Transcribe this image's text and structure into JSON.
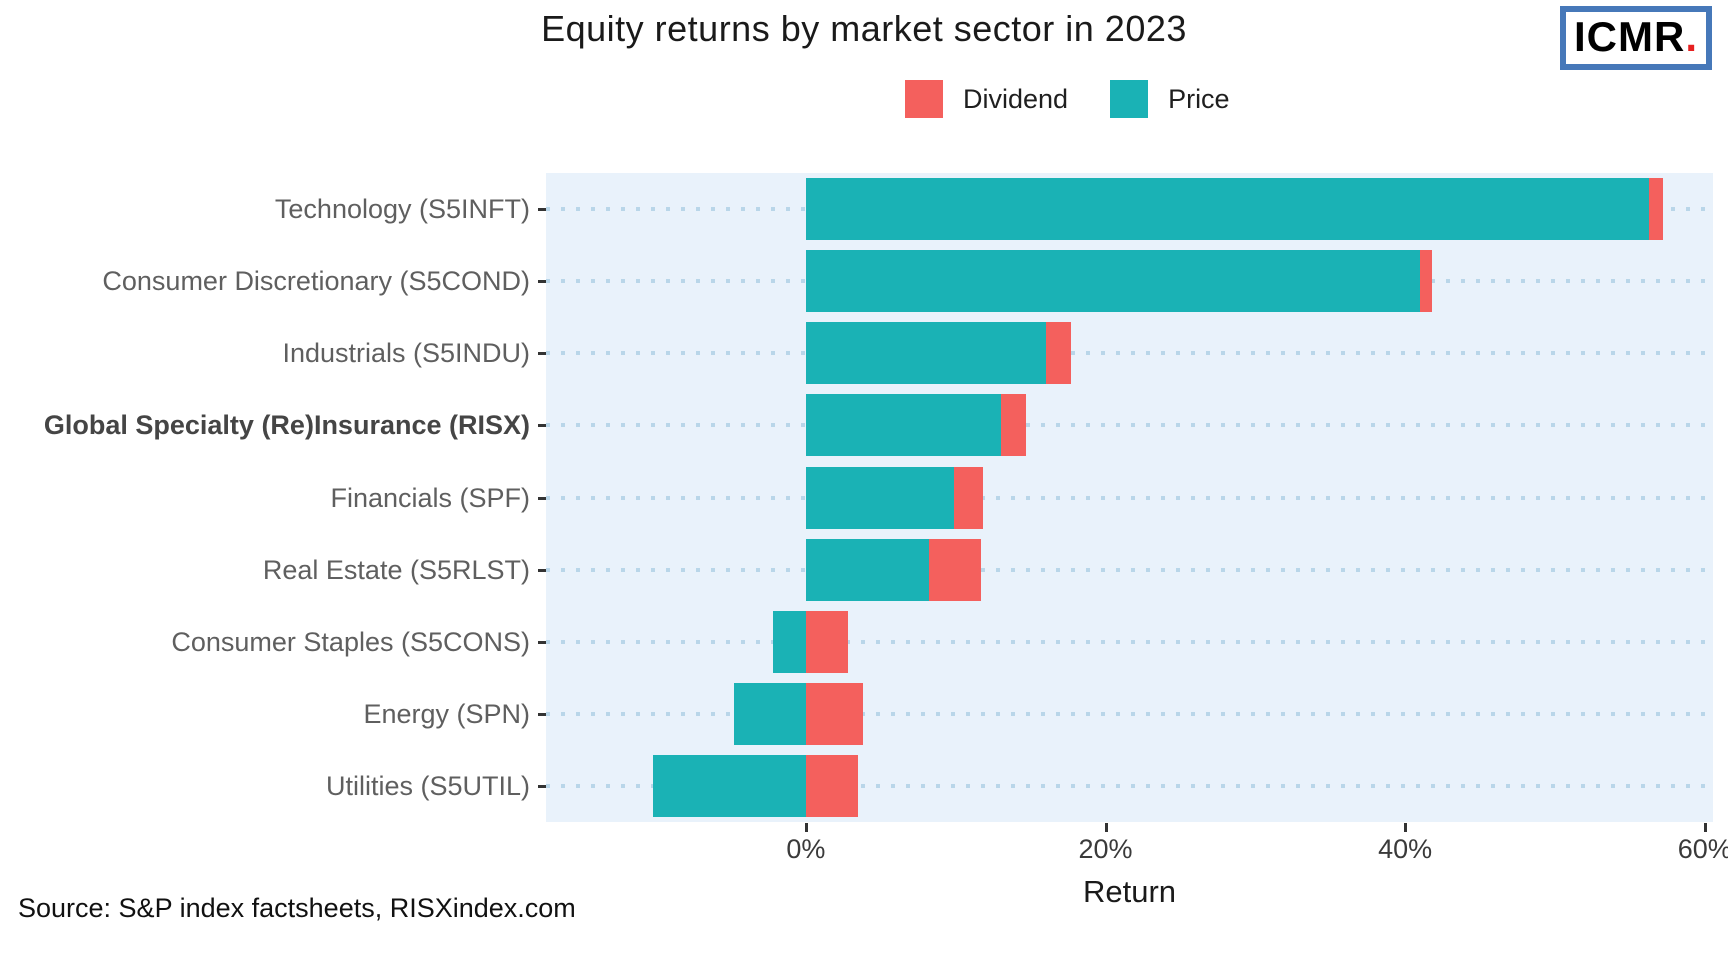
{
  "title": "Equity returns by market sector in 2023",
  "logo": {
    "text": "ICMR",
    "dot": "."
  },
  "legend": [
    {
      "label": "Dividend",
      "color": "#f4605d"
    },
    {
      "label": "Price",
      "color": "#1ab2b5"
    }
  ],
  "source": "Source: S&P index factsheets, RISXindex.com",
  "colors": {
    "price": "#1ab2b5",
    "dividend": "#f4605d",
    "panel_background": "#e9f2fb",
    "gridline": "#b9d6e9",
    "logo_border": "#4678b9",
    "logo_dot": "#e62020"
  },
  "chart_data": {
    "type": "bar",
    "orientation": "horizontal",
    "stacked": true,
    "title": "Equity returns by market sector in 2023",
    "xlabel": "Return",
    "ylabel": "",
    "categories": [
      "Technology (S5INFT)",
      "Consumer Discretionary (S5COND)",
      "Industrials (S5INDU)",
      "Global Specialty (Re)Insurance (RISX)",
      "Financials (SPF)",
      "Real Estate (S5RLST)",
      "Consumer Staples (S5CONS)",
      "Energy (SPN)",
      "Utilities (S5UTIL)"
    ],
    "highlight_category": "Global Specialty (Re)Insurance (RISX)",
    "series": [
      {
        "name": "Price",
        "color": "#1ab2b5",
        "values": [
          56.3,
          41.0,
          16.0,
          13.0,
          9.9,
          8.2,
          -2.2,
          -4.8,
          -10.2
        ]
      },
      {
        "name": "Dividend",
        "color": "#f4605d",
        "values": [
          0.9,
          0.8,
          1.7,
          1.7,
          1.9,
          3.5,
          2.8,
          3.8,
          3.5
        ]
      }
    ],
    "x_ticks": [
      "0%",
      "20%",
      "40%",
      "60%"
    ],
    "x_tick_values": [
      0,
      20,
      40,
      60
    ],
    "xlim": [
      -17.35,
      60.55
    ],
    "grid": "horizontal-dotted",
    "legend_position": "top"
  }
}
